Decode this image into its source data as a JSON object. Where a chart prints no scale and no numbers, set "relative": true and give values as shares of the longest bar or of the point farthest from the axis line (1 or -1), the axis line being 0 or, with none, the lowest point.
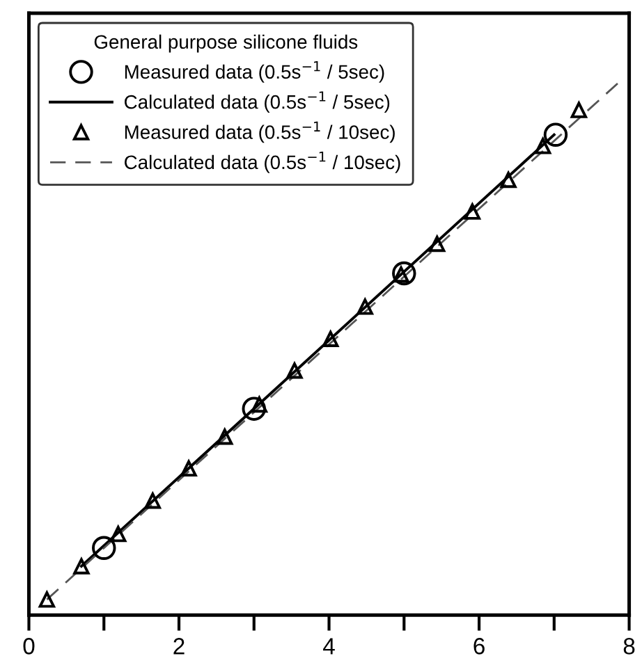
{
  "chart_data": {
    "type": "line",
    "relative": true,
    "legend_title": "General purpose silicone fluids",
    "legend": "top left",
    "tick_labels": "x",
    "grid": false,
    "xlim": [
      0,
      8
    ],
    "xticks": [
      0,
      {
        "value": 1,
        "label": null
      },
      2,
      {
        "value": 3,
        "label": null
      },
      4,
      {
        "value": 5,
        "label": null
      },
      6,
      {
        "value": 7,
        "label": null
      },
      8
    ],
    "series": [
      {
        "name": "Measured data (0.5s$^{−1}$ / 5sec)",
        "type": "scatter",
        "marker": "circle",
        "color": "#000000",
        "x": [
          1.0,
          3.0,
          5.0,
          7.02
        ],
        "values": [
          0.125,
          0.384,
          0.636,
          0.894
        ]
      },
      {
        "name": "Calculated data (0.5s$^{−1}$ / 5sec)",
        "line_style": "solid",
        "color": "#000000",
        "x": [
          0.7,
          7.0
        ],
        "values": [
          0.091,
          0.894
        ]
      },
      {
        "name": "Measured data (0.5s$^{−1}$ / 10sec)",
        "type": "scatter",
        "marker": "triangle",
        "color": "#000000",
        "x": [
          0.24,
          0.7,
          1.19,
          1.65,
          2.13,
          2.61,
          3.07,
          3.54,
          4.02,
          4.48,
          4.96,
          5.44,
          5.91,
          6.39,
          6.85,
          7.33
        ],
        "values": [
          0.029,
          0.091,
          0.151,
          0.213,
          0.273,
          0.332,
          0.392,
          0.455,
          0.514,
          0.574,
          0.634,
          0.691,
          0.751,
          0.81,
          0.873,
          0.94
        ]
      },
      {
        "name": "Calculated data (0.5s$^{−1}$ / 10sec)",
        "line_style": "dashed",
        "color": "#555555",
        "x": [
          0.24,
          7.93
        ],
        "values": [
          0.029,
          1.0
        ]
      }
    ]
  }
}
